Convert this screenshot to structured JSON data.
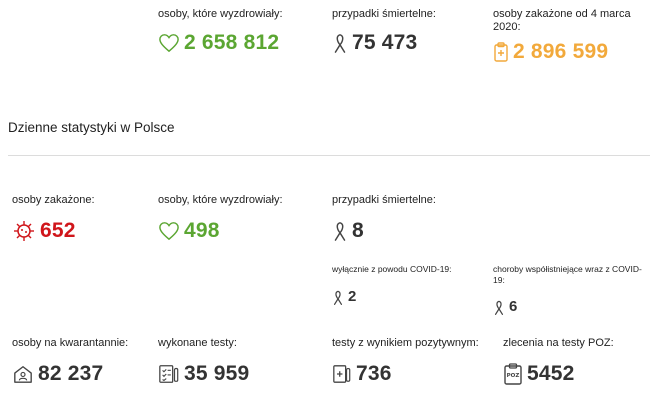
{
  "top": {
    "recovered": {
      "label": "osoby, które wyzdrowiały:",
      "value": "2 658 812",
      "icon": "heart-icon"
    },
    "deaths": {
      "label": "przypadki śmiertelne:",
      "value": "75 473",
      "icon": "ribbon-icon"
    },
    "infected_since": {
      "label": "osoby zakażone od 4 marca 2020:",
      "value": "2 896 599",
      "icon": "clipboard-icon"
    }
  },
  "daily_title": "Dzienne statystyki w Polsce",
  "daily": {
    "infected": {
      "label": "osoby zakażone:",
      "value": "652",
      "icon": "virus-icon"
    },
    "recovered": {
      "label": "osoby, które wyzdrowiały:",
      "value": "498",
      "icon": "heart-icon"
    },
    "deaths": {
      "label": "przypadki śmiertelne:",
      "value": "8",
      "icon": "ribbon-icon"
    },
    "deaths_covid_only": {
      "label": "wyłącznie z powodu COVID-19:",
      "value": "2",
      "icon": "ribbon-icon"
    },
    "deaths_comorbid": {
      "label": "choroby współistniejące wraz z COVID-19:",
      "value": "6",
      "icon": "ribbon-icon"
    },
    "quarantine": {
      "label": "osoby na kwarantannie:",
      "value": "82 237",
      "icon": "house-icon"
    },
    "tests": {
      "label": "wykonane testy:",
      "value": "35 959",
      "icon": "test-list-icon"
    },
    "positive_tests": {
      "label": "testy z wynikiem pozytywnym:",
      "value": "736",
      "icon": "positive-test-icon"
    },
    "poz_orders": {
      "label": "zlecenia na testy POZ:",
      "value": "5452",
      "icon": "poz-clipboard-icon"
    }
  },
  "colors": {
    "green": "#5ba632",
    "red": "#d0161b",
    "orange": "#f2a93b",
    "dark": "#333333"
  }
}
